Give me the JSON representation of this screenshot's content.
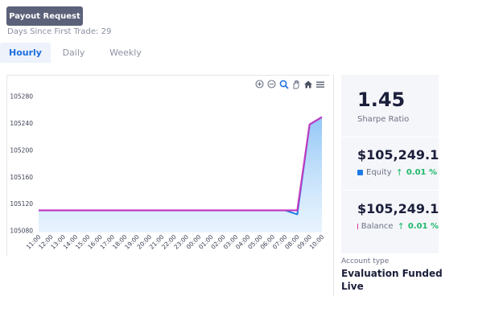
{
  "header": {
    "payout_button": "Payout Request",
    "days_since_label": "Days Since First Trade:",
    "days_since_value": "29"
  },
  "tabs": [
    {
      "label": "Hourly",
      "active": true
    },
    {
      "label": "Daily",
      "active": false
    },
    {
      "label": "Weekly",
      "active": false
    }
  ],
  "chart_toolbar": [
    "zoom-in-icon",
    "zoom-out-icon",
    "magnifier-icon",
    "pan-hand-icon",
    "home-icon",
    "menu-icon"
  ],
  "chart_data": {
    "type": "area",
    "categories": [
      "11:00",
      "12:00",
      "13:00",
      "14:00",
      "15:00",
      "16:00",
      "17:00",
      "18:00",
      "19:00",
      "20:00",
      "21:00",
      "22:00",
      "23:00",
      "00:00",
      "01:00",
      "02:00",
      "03:00",
      "04:00",
      "05:00",
      "06:00",
      "07:00",
      "08:00",
      "09:00",
      "10:00"
    ],
    "yticks": [
      105080,
      105120,
      105160,
      105200,
      105240,
      105280
    ],
    "ylim": [
      105077,
      105288
    ],
    "series": [
      {
        "name": "Equity",
        "color": "#1e7be6",
        "values": [
          105110,
          105110,
          105110,
          105110,
          105110,
          105110,
          105110,
          105110,
          105110,
          105110,
          105110,
          105110,
          105110,
          105110,
          105110,
          105110,
          105110,
          105110,
          105110,
          105110,
          105110,
          105104,
          105238,
          105249
        ]
      },
      {
        "name": "Balance",
        "color": "#c03cc0",
        "values": [
          105110,
          105110,
          105110,
          105110,
          105110,
          105110,
          105110,
          105110,
          105110,
          105110,
          105110,
          105110,
          105110,
          105110,
          105110,
          105110,
          105110,
          105110,
          105110,
          105110,
          105110,
          105110,
          105238,
          105249
        ]
      }
    ],
    "grid": false,
    "legend": "none"
  },
  "stats": {
    "sharpe_value": "1.45",
    "sharpe_label": "Sharpe Ratio",
    "equity_value": "$105,249.11",
    "equity_label": "Equity",
    "equity_change": "0.01 %",
    "equity_color": "#1e7be6",
    "balance_value": "$105,249.11",
    "balance_label": "Balance",
    "balance_change": "0.01 %",
    "balance_color": "#e0339b"
  },
  "account": {
    "type_label": "Account type",
    "type_value": "Evaluation Funded Live"
  }
}
